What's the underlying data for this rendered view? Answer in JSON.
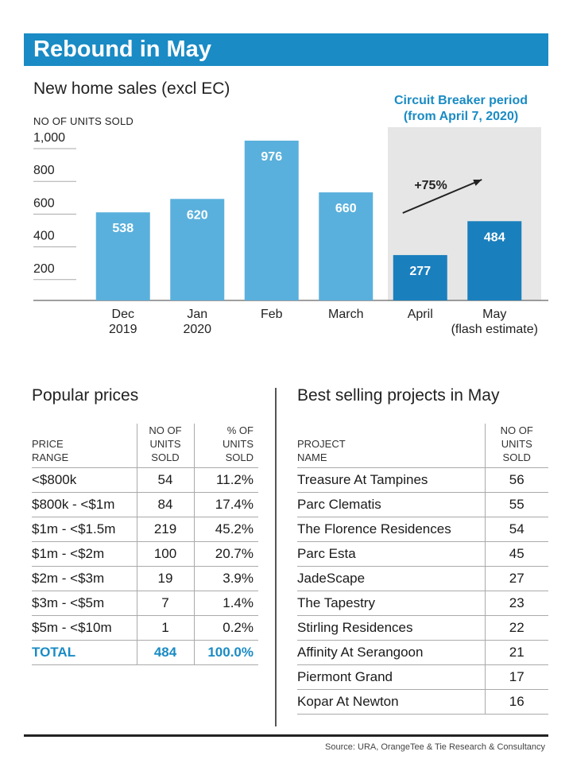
{
  "header": {
    "banner": "Rebound in May",
    "subtitle": "New home sales (excl EC)",
    "y_axis_title": "NO OF UNITS SOLD",
    "circuit_breaker_label": "Circuit Breaker period\n(from April 7, 2020)",
    "growth_annotation": "+75%"
  },
  "colors": {
    "banner": "#1a8bc4",
    "bar_light": "#5ab0dc",
    "bar_dark": "#1a7fbd",
    "shade": "#e6e6e6",
    "accent_text": "#1a8bc4"
  },
  "chart_data": {
    "type": "bar",
    "title": "New home sales (excl EC)",
    "ylabel": "NO OF UNITS SOLD",
    "xlabel": "",
    "ylim": [
      0,
      1000
    ],
    "yticks": [
      200,
      400,
      600,
      800,
      1000
    ],
    "ytick_labels": [
      "200",
      "400",
      "600",
      "800",
      "1,000"
    ],
    "categories": [
      "Dec\n2019",
      "Jan\n2020",
      "Feb",
      "March",
      "April",
      "May\n(flash estimate)"
    ],
    "values": [
      538,
      620,
      976,
      660,
      277,
      484
    ],
    "value_labels": [
      "538",
      "620",
      "976",
      "660",
      "277",
      "484"
    ],
    "highlight_period": {
      "from_category": "April",
      "to_category": "May\n(flash estimate)",
      "label": "Circuit Breaker period (from April 7, 2020)"
    },
    "annotation": {
      "text": "+75%",
      "from": "April",
      "to": "May\n(flash estimate)"
    }
  },
  "popular_prices": {
    "title": "Popular prices",
    "headers": [
      "PRICE\nRANGE",
      "NO OF\nUNITS\nSOLD",
      "% OF\nUNITS\nSOLD"
    ],
    "rows": [
      [
        "<$800k",
        "54",
        "11.2%"
      ],
      [
        "$800k - <$1m",
        "84",
        "17.4%"
      ],
      [
        "$1m - <$1.5m",
        "219",
        "45.2%"
      ],
      [
        "$1m - <$2m",
        "100",
        "20.7%"
      ],
      [
        "$2m - <$3m",
        "19",
        "3.9%"
      ],
      [
        "$3m - <$5m",
        "7",
        "1.4%"
      ],
      [
        "$5m - <$10m",
        "1",
        "0.2%"
      ]
    ],
    "total": [
      "TOTAL",
      "484",
      "100.0%"
    ]
  },
  "best_selling": {
    "title": "Best selling projects in May",
    "headers": [
      "PROJECT\nNAME",
      "NO OF\nUNITS\nSOLD"
    ],
    "rows": [
      [
        "Treasure At Tampines",
        "56"
      ],
      [
        "Parc Clematis",
        "55"
      ],
      [
        "The Florence Residences",
        "54"
      ],
      [
        "Parc Esta",
        "45"
      ],
      [
        "JadeScape",
        "27"
      ],
      [
        "The Tapestry",
        "23"
      ],
      [
        "Stirling Residences",
        "22"
      ],
      [
        "Affinity At Serangoon",
        "21"
      ],
      [
        "Piermont Grand",
        "17"
      ],
      [
        "Kopar At Newton",
        "16"
      ]
    ]
  },
  "footer": {
    "source": "Source: URA, OrangeTee & Tie Research & Consultancy"
  }
}
